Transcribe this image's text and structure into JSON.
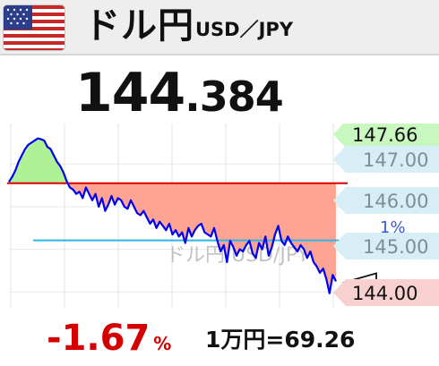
{
  "header": {
    "flag": "us-flag-icon",
    "pair_name": "ドル円",
    "pair_code": "USD／JPY"
  },
  "quote": {
    "price_integer": "144",
    "price_decimal": ".384"
  },
  "chart_data": {
    "type": "line",
    "y_ticks": [
      "147.66",
      "147.00",
      "146.00",
      "145.00",
      "144.00"
    ],
    "y_high_label": "147.66",
    "current_label": "144.00",
    "watermark": "ドル円 USD/JPY",
    "partial_label": "1%",
    "reference_line": 146.55,
    "moving_average": 145.0,
    "ylim": [
      143.65,
      147.95
    ],
    "grid": true,
    "colors": {
      "line": "#0000ee",
      "reference": "#dd0000",
      "moving_average": "#29b6e8",
      "fill_above": "#aaf090",
      "fill_below": "#ff9f8c",
      "high_badge": "#c8f7c0",
      "tick_badge": "#d8eef7",
      "current_badge": "#f8d0d0"
    },
    "series": [
      {
        "values": [
          146.58,
          146.7,
          146.85,
          147.05,
          147.2,
          147.35,
          147.45,
          147.5,
          147.55,
          147.6,
          147.58,
          147.55,
          147.4,
          147.35,
          147.2,
          147.05,
          146.95,
          146.8,
          146.6,
          146.45,
          146.4,
          146.3,
          146.35,
          146.2,
          146.45,
          146.3,
          146.15,
          146.3,
          146.0,
          146.2,
          145.9,
          146.05,
          146.25,
          146.05,
          146.2,
          146.15,
          146.0,
          145.95,
          146.15,
          146.0,
          145.85,
          145.8,
          145.9,
          145.75,
          145.6,
          145.7,
          145.5,
          145.65,
          145.55,
          145.45,
          145.6,
          145.35,
          145.45,
          145.3,
          145.4,
          145.15,
          145.5,
          145.3,
          145.45,
          145.55,
          145.6,
          145.4,
          145.35,
          145.3,
          145.5,
          145.2,
          144.95,
          145.1,
          144.7,
          145.2,
          145.05,
          144.85,
          145.0,
          144.95,
          145.1,
          145.2,
          144.9,
          144.8,
          145.15,
          145.0,
          145.3,
          144.85,
          145.05,
          145.35,
          145.55,
          145.2,
          145.1,
          145.3,
          145.15,
          145.05,
          144.95,
          145.1,
          145.0,
          144.8,
          144.95,
          144.7,
          144.6,
          144.45,
          144.55,
          144.3,
          143.97,
          144.4,
          144.25
        ]
      }
    ]
  },
  "footer": {
    "change_value": "-1.67",
    "change_unit": "%",
    "conversion": "1万円=69.26"
  }
}
